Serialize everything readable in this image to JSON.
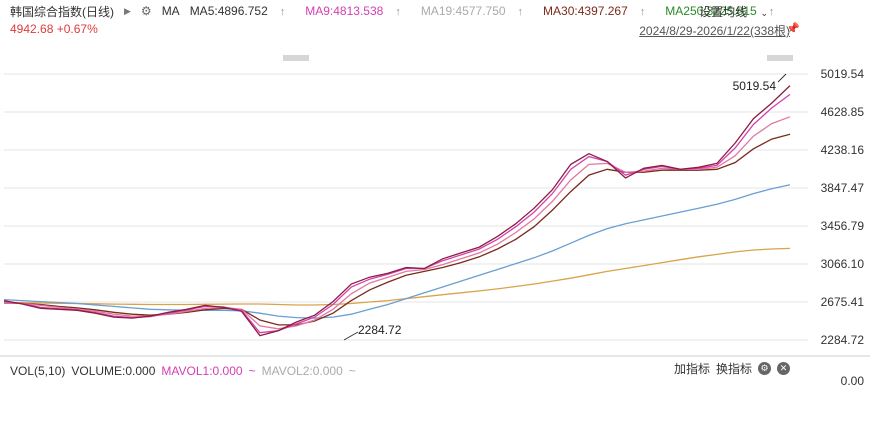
{
  "header": {
    "title": "韩国综合指数(日线)",
    "ma_label": "MA",
    "ma5": "MA5:4896.752",
    "ma9": "MA9:4813.538",
    "ma19": "MA19:4577.750",
    "ma30": "MA30:4397.267",
    "ma250": "MA250:3225.815",
    "settings": "设置均线"
  },
  "subheader": {
    "price": "4942.68",
    "change": "+0.67%",
    "range": "2024/8/29-2026/1/22(338根)"
  },
  "colors": {
    "up": "#e03a3a",
    "down": "#1aa34a",
    "ma5": "#8b1e3f",
    "ma9": "#d43fb2",
    "ma19": "#e07aa0",
    "ma30": "#7b2b1c",
    "ma60": "#6a9fd4",
    "ma250": "#d9a34a",
    "grid": "#e6e6e6"
  },
  "volume": {
    "label": "VOL(5,10)",
    "volume": "VOLUME:0.000",
    "mavol1": "MAVOL1:0.000",
    "mavol2": "MAVOL2:0.000",
    "add_indicator": "加指标",
    "switch_indicator": "换指标",
    "axis_value": "0.00"
  },
  "chart_data": {
    "type": "line",
    "title": "韩国综合指数(日线)",
    "x_range": [
      "2024/8/29",
      "2026/1/22"
    ],
    "y_ticks": [
      5019.54,
      4628.85,
      4238.16,
      3847.47,
      3456.79,
      3066.1,
      2675.41,
      2284.72
    ],
    "ylim": [
      2230,
      5060
    ],
    "annotations": [
      {
        "label": "5019.54",
        "type": "high",
        "value": 5019.54
      },
      {
        "label": "2284.72",
        "type": "low",
        "value": 2284.72
      }
    ],
    "series": [
      {
        "name": "MA5",
        "key": "ma5",
        "values": [
          2690,
          2655,
          2610,
          2600,
          2590,
          2560,
          2520,
          2510,
          2530,
          2570,
          2600,
          2640,
          2620,
          2580,
          2330,
          2380,
          2470,
          2540,
          2680,
          2860,
          2930,
          2970,
          3030,
          3020,
          3120,
          3180,
          3240,
          3350,
          3480,
          3640,
          3830,
          4090,
          4200,
          4120,
          3950,
          4050,
          4080,
          4040,
          4060,
          4100,
          4310,
          4560,
          4720,
          4900
        ]
      },
      {
        "name": "MA9",
        "key": "ma9",
        "values": [
          2680,
          2660,
          2620,
          2605,
          2595,
          2565,
          2530,
          2515,
          2525,
          2560,
          2595,
          2630,
          2625,
          2590,
          2360,
          2380,
          2450,
          2520,
          2650,
          2830,
          2910,
          2960,
          3020,
          3020,
          3100,
          3160,
          3220,
          3320,
          3450,
          3600,
          3790,
          4040,
          4170,
          4120,
          3980,
          4040,
          4070,
          4040,
          4050,
          4080,
          4260,
          4500,
          4670,
          4810
        ]
      },
      {
        "name": "MA19",
        "key": "ma19",
        "values": [
          2670,
          2660,
          2640,
          2620,
          2600,
          2580,
          2550,
          2530,
          2530,
          2550,
          2580,
          2610,
          2620,
          2600,
          2430,
          2400,
          2430,
          2490,
          2600,
          2760,
          2870,
          2930,
          2990,
          3010,
          3060,
          3120,
          3180,
          3270,
          3390,
          3530,
          3710,
          3930,
          4090,
          4100,
          4010,
          4020,
          4050,
          4040,
          4040,
          4060,
          4180,
          4380,
          4510,
          4580
        ]
      },
      {
        "name": "MA30",
        "key": "ma30",
        "values": [
          2665,
          2660,
          2650,
          2630,
          2615,
          2595,
          2570,
          2550,
          2540,
          2550,
          2570,
          2595,
          2610,
          2600,
          2490,
          2440,
          2440,
          2480,
          2560,
          2690,
          2800,
          2880,
          2950,
          2990,
          3030,
          3080,
          3140,
          3220,
          3320,
          3450,
          3620,
          3810,
          3980,
          4040,
          4010,
          4010,
          4030,
          4030,
          4030,
          4040,
          4110,
          4250,
          4350,
          4400
        ]
      },
      {
        "name": "MA60",
        "key": "ma60",
        "values": [
          2700,
          2690,
          2680,
          2670,
          2660,
          2645,
          2630,
          2615,
          2600,
          2595,
          2590,
          2590,
          2590,
          2585,
          2560,
          2530,
          2515,
          2510,
          2520,
          2550,
          2600,
          2650,
          2710,
          2770,
          2830,
          2890,
          2950,
          3010,
          3070,
          3130,
          3200,
          3280,
          3360,
          3430,
          3480,
          3520,
          3560,
          3600,
          3640,
          3680,
          3730,
          3790,
          3840,
          3880
        ]
      },
      {
        "name": "MA250",
        "key": "ma250",
        "values": [
          2670,
          2668,
          2665,
          2662,
          2660,
          2657,
          2654,
          2652,
          2650,
          2650,
          2650,
          2652,
          2654,
          2655,
          2655,
          2650,
          2645,
          2645,
          2650,
          2660,
          2675,
          2690,
          2710,
          2730,
          2750,
          2770,
          2790,
          2810,
          2835,
          2860,
          2890,
          2920,
          2955,
          2990,
          3020,
          3050,
          3080,
          3110,
          3140,
          3165,
          3190,
          3210,
          3220,
          3226
        ]
      }
    ]
  }
}
